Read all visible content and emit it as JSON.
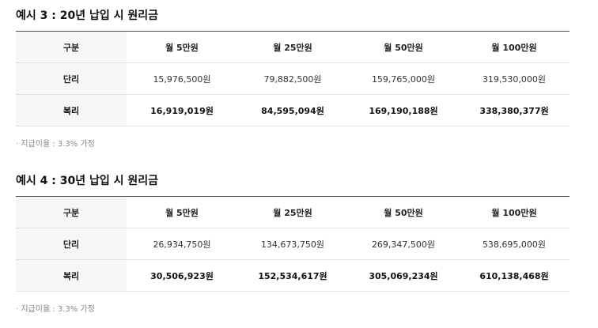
{
  "sections": [
    {
      "title": "예시 3 : 20년 납입 시 원리금",
      "table": {
        "header": [
          "구분",
          "월 5만원",
          "월 25만원",
          "월 50만원",
          "월 100만원"
        ],
        "rows": [
          [
            "단리",
            "15,976,500원",
            "79,882,500원",
            "159,765,000원",
            "319,530,000원"
          ],
          [
            "복리",
            "16,919,019원",
            "84,595,094원",
            "169,190,188원",
            "338,380,377원"
          ]
        ]
      },
      "note": "· 지급이율 : 3.3% 가정"
    },
    {
      "title": "예시 4 : 30년 납입 시 원리금",
      "table": {
        "header": [
          "구분",
          "월 5만원",
          "월 25만원",
          "월 50만원",
          "월 100만원"
        ],
        "rows": [
          [
            "단리",
            "26,934,750원",
            "134,673,750원",
            "269,347,500원",
            "538,695,000원"
          ],
          [
            "복리",
            "30,506,923원",
            "152,534,617원",
            "305,069,234원",
            "610,138,468원"
          ]
        ]
      },
      "note": "· 지급이율 : 3.3% 가정"
    }
  ]
}
